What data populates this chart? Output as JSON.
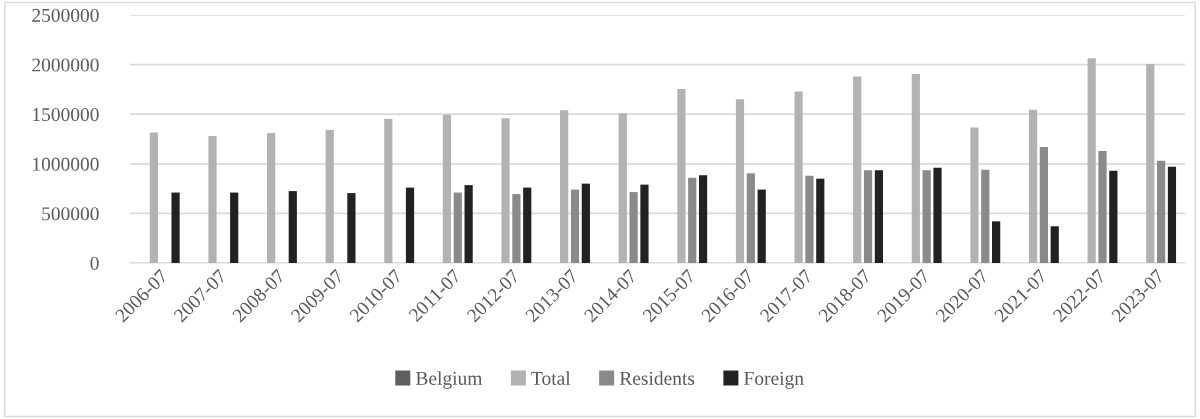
{
  "chart_data": {
    "type": "bar",
    "categories": [
      "2006-07",
      "2007-07",
      "2008-07",
      "2009-07",
      "2010-07",
      "2011-07",
      "2012-07",
      "2013-07",
      "2014-07",
      "2015-07",
      "2016-07",
      "2017-07",
      "2018-07",
      "2019-07",
      "2020-07",
      "2021-07",
      "2022-07",
      "2023-07"
    ],
    "series": [
      {
        "name": "Belgium",
        "color": "#5f5f5f",
        "values": [
          null,
          null,
          null,
          null,
          null,
          null,
          null,
          null,
          null,
          null,
          null,
          null,
          null,
          null,
          null,
          null,
          null,
          null
        ]
      },
      {
        "name": "Total",
        "color": "#b2b2b2",
        "values": [
          1315000,
          1280000,
          1310000,
          1340000,
          1455000,
          1495000,
          1460000,
          1540000,
          1510000,
          1755000,
          1650000,
          1730000,
          1880000,
          1905000,
          1365000,
          1545000,
          2065000,
          2005000
        ]
      },
      {
        "name": "Residents",
        "color": "#8a8a8a",
        "values": [
          null,
          null,
          null,
          null,
          null,
          710000,
          695000,
          740000,
          715000,
          860000,
          905000,
          880000,
          935000,
          935000,
          940000,
          1170000,
          1130000,
          1030000
        ]
      },
      {
        "name": "Foreign",
        "color": "#222222",
        "values": [
          710000,
          710000,
          725000,
          705000,
          760000,
          785000,
          760000,
          800000,
          790000,
          885000,
          740000,
          850000,
          935000,
          960000,
          420000,
          370000,
          930000,
          970000
        ]
      }
    ],
    "ylim": [
      0,
      2500000
    ],
    "yticks": [
      0,
      500000,
      1000000,
      1500000,
      2000000,
      2500000
    ],
    "grid": "y",
    "legend": "bottom"
  }
}
